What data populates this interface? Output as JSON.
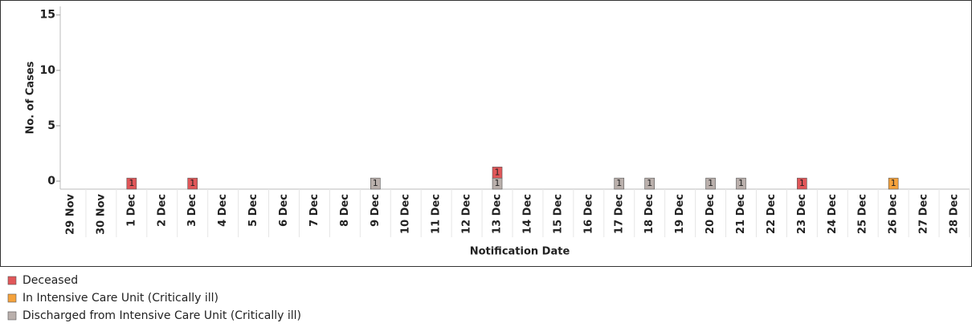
{
  "chart_data": {
    "type": "bar",
    "y_label": "No. of Cases",
    "x_label": "Notification Date",
    "categories": [
      "29 Nov",
      "30 Nov",
      "1 Dec",
      "2 Dec",
      "3 Dec",
      "4 Dec",
      "5 Dec",
      "6 Dec",
      "7 Dec",
      "8 Dec",
      "9 Dec",
      "10 Dec",
      "11 Dec",
      "12 Dec",
      "13 Dec",
      "14 Dec",
      "15 Dec",
      "16 Dec",
      "17 Dec",
      "18 Dec",
      "19 Dec",
      "20 Dec",
      "21 Dec",
      "22 Dec",
      "23 Dec",
      "24 Dec",
      "25 Dec",
      "26 Dec",
      "27 Dec",
      "28 Dec"
    ],
    "series": [
      {
        "name": "Deceased",
        "color": "#e15759",
        "values": [
          null,
          null,
          1,
          null,
          1,
          null,
          null,
          null,
          null,
          null,
          null,
          null,
          null,
          null,
          1,
          null,
          null,
          null,
          null,
          null,
          null,
          null,
          null,
          null,
          1,
          null,
          null,
          null,
          null,
          null
        ]
      },
      {
        "name": "In Intensive Care Unit (Critically ill)",
        "color": "#f5a23c",
        "values": [
          null,
          null,
          null,
          null,
          null,
          null,
          null,
          null,
          null,
          null,
          null,
          null,
          null,
          null,
          null,
          null,
          null,
          null,
          null,
          null,
          null,
          null,
          null,
          null,
          null,
          null,
          null,
          1,
          null,
          null
        ]
      },
      {
        "name": "Discharged from Intensive Care Unit (Critically ill)",
        "color": "#bab0ac",
        "values": [
          null,
          null,
          null,
          null,
          null,
          null,
          null,
          null,
          null,
          null,
          1,
          null,
          null,
          null,
          1,
          null,
          null,
          null,
          1,
          1,
          null,
          1,
          1,
          null,
          null,
          null,
          null,
          null,
          null,
          null
        ]
      }
    ],
    "ylim": [
      0,
      16.5
    ],
    "yticks": [
      0,
      5,
      10,
      15
    ],
    "stacked": true
  }
}
